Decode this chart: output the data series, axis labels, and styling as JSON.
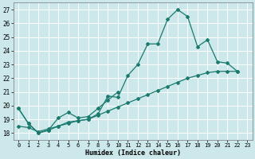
{
  "xlabel": "Humidex (Indice chaleur)",
  "xlim": [
    -0.5,
    23.5
  ],
  "ylim": [
    17.5,
    27.5
  ],
  "yticks": [
    18,
    19,
    20,
    21,
    22,
    23,
    24,
    25,
    26,
    27
  ],
  "xtick_labels": [
    "0",
    "1",
    "2",
    "3",
    "4",
    "5",
    "6",
    "7",
    "8",
    "9",
    "10",
    "11",
    "12",
    "13",
    "14",
    "15",
    "16",
    "17",
    "18",
    "19",
    "20",
    "21",
    "22",
    "23"
  ],
  "background_color": "#cce8ea",
  "grid_color": "#ffffff",
  "line_color": "#1a7a6e",
  "line1_x": [
    0,
    1,
    2,
    3,
    4,
    5,
    6,
    7,
    8,
    9,
    10,
    11,
    12,
    13,
    14,
    15,
    16,
    17,
    18,
    19,
    20,
    21,
    22
  ],
  "line1_y": [
    19.8,
    18.7,
    18.0,
    18.2,
    18.5,
    18.8,
    18.9,
    19.0,
    19.4,
    20.7,
    20.6,
    22.2,
    23.0,
    24.5,
    24.5,
    26.3,
    27.0,
    26.5,
    24.3,
    24.8,
    23.2,
    23.1,
    22.5
  ],
  "line2_x": [
    0,
    1,
    2,
    3,
    4,
    5,
    6,
    7,
    8,
    9,
    10
  ],
  "line2_y": [
    19.8,
    18.7,
    18.0,
    18.2,
    19.1,
    19.5,
    19.1,
    19.2,
    19.8,
    20.4,
    21.0
  ],
  "line3_x": [
    0,
    1,
    2,
    3,
    4,
    5,
    6,
    7,
    8,
    9,
    10,
    11,
    12,
    13,
    14,
    15,
    16,
    17,
    18,
    19,
    20,
    21,
    22
  ],
  "line3_y": [
    18.5,
    18.4,
    18.1,
    18.3,
    18.5,
    18.7,
    18.9,
    19.0,
    19.3,
    19.6,
    19.9,
    20.2,
    20.5,
    20.8,
    21.1,
    21.4,
    21.7,
    22.0,
    22.2,
    22.4,
    22.5,
    22.5,
    22.5
  ]
}
